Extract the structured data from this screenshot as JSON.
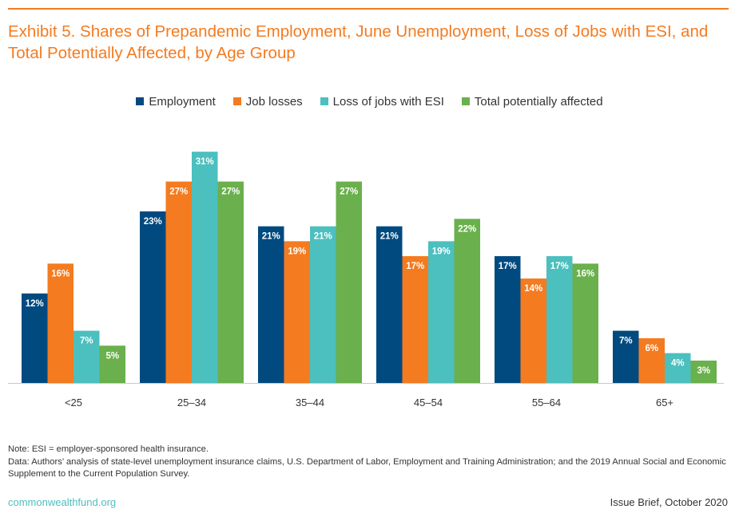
{
  "title": "Exhibit 5. Shares of Prepandemic Employment, June Unemployment, Loss of Jobs with ESI, and Total Potentially Affected, by Age Group",
  "colors": {
    "accent": "#f47b20",
    "footer_link": "#4cbfbf"
  },
  "chart_data": {
    "type": "bar",
    "categories": [
      "<25",
      "25–34",
      "35–44",
      "45–54",
      "55–64",
      "65+"
    ],
    "series": [
      {
        "name": "Employment",
        "color": "#004a80",
        "values": [
          12,
          23,
          21,
          21,
          17,
          7
        ]
      },
      {
        "name": "Job losses",
        "color": "#f47b20",
        "values": [
          16,
          27,
          19,
          17,
          14,
          6
        ]
      },
      {
        "name": "Loss of jobs with ESI",
        "color": "#4cbfbf",
        "values": [
          7,
          31,
          21,
          19,
          17,
          4
        ]
      },
      {
        "name": "Total potentially affected",
        "color": "#6ab04c",
        "values": [
          5,
          27,
          27,
          22,
          16,
          3
        ]
      }
    ],
    "value_suffix": "%",
    "ylim": [
      0,
      33
    ],
    "legend_position": "top-center",
    "grid": false
  },
  "notes": [
    "Note: ESI = employer-sponsored health insurance.",
    "Data: Authors’ analysis of state-level unemployment insurance claims, U.S. Department of Labor, Employment and Training Administration; and the 2019 Annual Social and Economic Supplement to the Current Population Survey."
  ],
  "footer": {
    "source_site": "commonwealthfund.org",
    "publication": "Issue Brief, October 2020"
  }
}
